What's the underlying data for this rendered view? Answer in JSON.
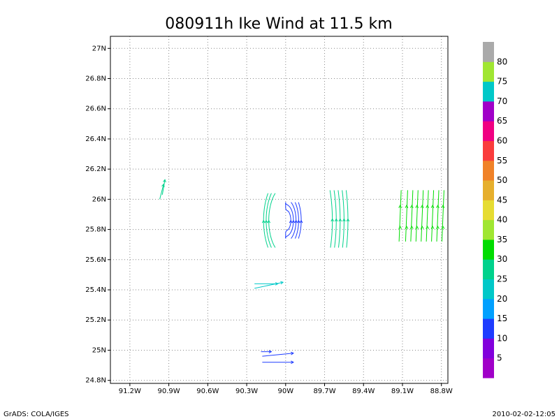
{
  "chart_data": {
    "type": "vector_field",
    "title": "080911h Ike Wind at 11.5 km",
    "xlabel": "",
    "ylabel": "",
    "xlim": [
      -91.35,
      -88.75
    ],
    "ylim": [
      24.78,
      27.08
    ],
    "grid": true,
    "x_ticks": [
      {
        "value": -91.2,
        "label": "91.2W"
      },
      {
        "value": -90.9,
        "label": "90.9W"
      },
      {
        "value": -90.6,
        "label": "90.6W"
      },
      {
        "value": -90.3,
        "label": "90.3W"
      },
      {
        "value": -90.0,
        "label": "90W"
      },
      {
        "value": -89.7,
        "label": "89.7W"
      },
      {
        "value": -89.4,
        "label": "89.4W"
      },
      {
        "value": -89.1,
        "label": "89.1W"
      },
      {
        "value": -88.8,
        "label": "88.8W"
      }
    ],
    "y_ticks": [
      {
        "value": 24.8,
        "label": "24.8N"
      },
      {
        "value": 25.0,
        "label": "25N"
      },
      {
        "value": 25.2,
        "label": "25.2N"
      },
      {
        "value": 25.4,
        "label": "25.4N"
      },
      {
        "value": 25.6,
        "label": "25.6N"
      },
      {
        "value": 25.8,
        "label": "25.8N"
      },
      {
        "value": 26.0,
        "label": "26N"
      },
      {
        "value": 26.2,
        "label": "26.2N"
      },
      {
        "value": 26.4,
        "label": "26.4N"
      },
      {
        "value": 26.6,
        "label": "26.6N"
      },
      {
        "value": 26.8,
        "label": "26.8N"
      },
      {
        "value": 27.0,
        "label": "27N"
      }
    ],
    "colorbar": {
      "labels": [
        "5",
        "10",
        "15",
        "20",
        "25",
        "30",
        "35",
        "40",
        "45",
        "50",
        "55",
        "60",
        "65",
        "70",
        "75",
        "80"
      ],
      "colors": [
        "#a000c8",
        "#8200dc",
        "#1e3cff",
        "#00a0ff",
        "#00c8c8",
        "#00d28c",
        "#00dc00",
        "#a0e632",
        "#e6dc32",
        "#e6af2d",
        "#f08228",
        "#fa3c3c",
        "#f00082",
        "#a000c8",
        "#00c8c8",
        "#a0e632",
        "#aaaaaa"
      ]
    },
    "series": [
      {
        "type": "arcs",
        "color": "#00d28c",
        "cx": -90.0,
        "cy": 25.86,
        "radii": [
          0.13,
          0.15,
          0.17
        ],
        "lon_start": 25.68,
        "lon_end": 26.04,
        "side": "west"
      },
      {
        "type": "arcs",
        "color": "#1e3cff",
        "cx": -90.0,
        "cy": 25.86,
        "radii": [
          0.04,
          0.06,
          0.08,
          0.1,
          0.12
        ],
        "lon_start": 25.74,
        "lon_end": 25.98,
        "side": "east"
      },
      {
        "type": "arcs",
        "color": "#00d28c",
        "cx": -90.0,
        "cy": 25.86,
        "radii": [
          0.36,
          0.39,
          0.42,
          0.45,
          0.48
        ],
        "lon_start": 25.68,
        "lon_end": 26.06,
        "side": "east"
      },
      {
        "type": "vertical_lines",
        "color": "#00dc00",
        "x": [
          -89.11,
          -89.06,
          -89.02,
          -88.98,
          -88.94,
          -88.9,
          -88.86,
          -88.82,
          -88.78
        ],
        "y_start": 25.72,
        "y_end": 26.06
      },
      {
        "type": "vectors",
        "color": "#00d28c",
        "points": [
          [
            -90.97,
            26.0,
            0.03,
            0.1
          ],
          [
            -90.95,
            26.03,
            0.02,
            0.1
          ]
        ]
      },
      {
        "type": "vectors",
        "color": "#00c8c8",
        "points": [
          [
            -90.24,
            25.44,
            0.18,
            0.0
          ],
          [
            -90.24,
            25.41,
            0.22,
            0.04
          ]
        ]
      },
      {
        "type": "vectors",
        "color": "#1e3cff",
        "points": [
          [
            -90.19,
            24.99,
            0.08,
            0.0
          ],
          [
            -90.18,
            24.96,
            0.24,
            0.02
          ],
          [
            -90.18,
            24.92,
            0.24,
            0.0
          ]
        ]
      }
    ]
  },
  "footer": {
    "left": "GrADS: COLA/IGES",
    "right": "2010-02-02-12:05"
  }
}
